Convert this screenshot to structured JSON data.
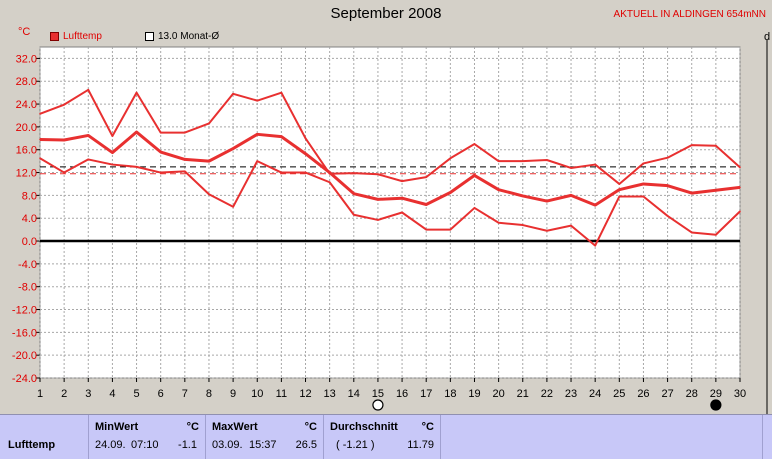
{
  "header": {
    "title": "September 2008",
    "station": "AKTUELL IN ALDINGEN 654mNN",
    "unit": "°C",
    "legend_series": "Lufttemp",
    "legend_avg": "13.0 Monat-Ø",
    "cut_text": "d"
  },
  "chart_data": {
    "type": "line",
    "title": "September 2008",
    "ylabel": "°C",
    "ylim": [
      -24,
      34
    ],
    "yticks": [
      "32.0",
      "28.0",
      "24.0",
      "20.0",
      "16.0",
      "12.0",
      "8.0",
      "4.0",
      "0.0",
      "-4.0",
      "-8.0",
      "-12.0",
      "-16.0",
      "-20.0",
      "-24.0"
    ],
    "x": [
      1,
      2,
      3,
      4,
      5,
      6,
      7,
      8,
      9,
      10,
      11,
      12,
      13,
      14,
      15,
      16,
      17,
      18,
      19,
      20,
      21,
      22,
      23,
      24,
      25,
      26,
      27,
      28,
      29,
      30
    ],
    "grid": true,
    "series": [
      {
        "name": "max",
        "color": "#e83030",
        "values": [
          22.3,
          23.9,
          26.5,
          18.4,
          26.0,
          19.0,
          19.0,
          20.6,
          25.8,
          24.6,
          26.0,
          18.0,
          11.8,
          11.9,
          11.7,
          10.5,
          11.2,
          14.5,
          17.0,
          14.0,
          14.0,
          14.2,
          12.8,
          13.4,
          10.0,
          13.6,
          14.6,
          16.8,
          16.7,
          12.9
        ]
      },
      {
        "name": "mean",
        "color": "#e83030",
        "bold": true,
        "values": [
          17.8,
          17.7,
          18.5,
          15.5,
          19.1,
          15.6,
          14.3,
          14.0,
          16.2,
          18.7,
          18.3,
          15.3,
          12.0,
          8.3,
          7.3,
          7.5,
          6.4,
          8.5,
          11.5,
          9.0,
          7.9,
          7.0,
          8.0,
          6.3,
          9.0,
          10.0,
          9.7,
          8.4,
          8.9,
          9.4
        ]
      },
      {
        "name": "min",
        "color": "#e83030",
        "values": [
          14.5,
          12.0,
          14.3,
          13.4,
          13.0,
          12.0,
          12.2,
          8.2,
          6.0,
          14.0,
          12.0,
          12.0,
          10.3,
          4.6,
          3.7,
          5.0,
          2.0,
          2.0,
          5.8,
          3.2,
          2.8,
          1.8,
          2.7,
          -0.8,
          7.8,
          7.8,
          4.4,
          1.5,
          1.1,
          5.2
        ]
      }
    ],
    "reference_lines": [
      {
        "value": 13.0,
        "color": "#000000",
        "dash": true
      },
      {
        "value": 11.79,
        "color": "#e83030",
        "dash": true
      }
    ],
    "moon_markers": [
      {
        "day": 15,
        "phase": "full"
      },
      {
        "day": 29,
        "phase": "new"
      }
    ]
  },
  "stats": {
    "row_label": "Lufttemp",
    "min_header": "MinWert",
    "min_unit": "°C",
    "min_date": "24.09.",
    "min_time": "07:10",
    "min_value": "-1.1",
    "max_header": "MaxWert",
    "max_unit": "°C",
    "max_date": "03.09.",
    "max_time": "15:37",
    "max_value": "26.5",
    "avg_header": "Durchschnitt",
    "avg_unit": "°C",
    "avg_diff": "( -1.21 )",
    "avg_value": "11.79"
  }
}
